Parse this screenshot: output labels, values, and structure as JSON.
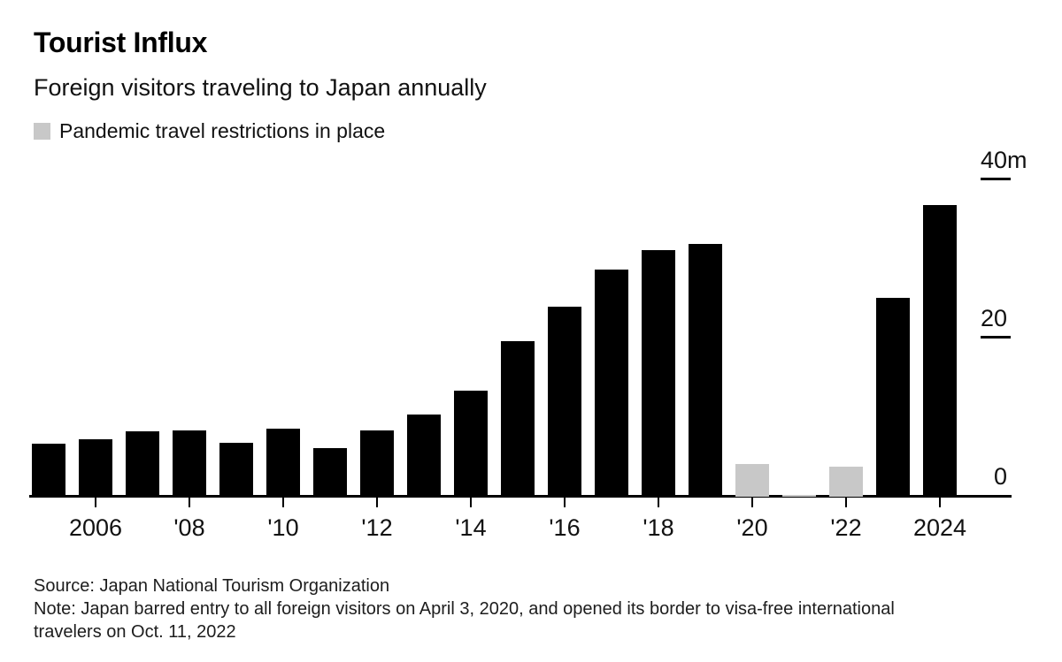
{
  "chart_data": {
    "type": "bar",
    "title": "Tourist Influx",
    "subtitle": "Foreign visitors traveling to Japan annually",
    "legend": [
      {
        "label": "Pandemic travel restrictions in place",
        "color": "#c8c8c8"
      }
    ],
    "unit": "millions of visitors per year",
    "categories": [
      2005,
      2006,
      2007,
      2008,
      2009,
      2010,
      2011,
      2012,
      2013,
      2014,
      2015,
      2016,
      2017,
      2018,
      2019,
      2020,
      2021,
      2022,
      2023,
      2024
    ],
    "values": [
      6.7,
      7.3,
      8.3,
      8.4,
      6.8,
      8.6,
      6.2,
      8.4,
      10.4,
      13.4,
      19.7,
      24.0,
      28.7,
      31.2,
      31.9,
      4.1,
      0.25,
      3.8,
      25.1,
      36.9
    ],
    "pandemic_years": [
      2020,
      2021,
      2022
    ],
    "bar_color": "#000000",
    "pandemic_bar_color": "#c8c8c8",
    "y_axis": {
      "side": "right",
      "lim": [
        0,
        40
      ],
      "ticks": [
        {
          "value": 0,
          "label": "0",
          "line": false
        },
        {
          "value": 20,
          "label": "20",
          "line": true
        },
        {
          "value": 40,
          "label": "40m",
          "line": true
        }
      ]
    },
    "x_axis": {
      "ticks": [
        {
          "year": 2006,
          "label": "2006"
        },
        {
          "year": 2008,
          "label": "'08"
        },
        {
          "year": 2010,
          "label": "'10"
        },
        {
          "year": 2012,
          "label": "'12"
        },
        {
          "year": 2014,
          "label": "'14"
        },
        {
          "year": 2016,
          "label": "'16"
        },
        {
          "year": 2018,
          "label": "'18"
        },
        {
          "year": 2020,
          "label": "'20"
        },
        {
          "year": 2022,
          "label": "'22"
        },
        {
          "year": 2024,
          "label": "2024"
        }
      ]
    },
    "footer": {
      "source": "Source: Japan National Tourism Organization",
      "note": "Note: Japan barred entry to all foreign visitors on April 3, 2020, and opened its border to visa-free international travelers on Oct. 11, 2022"
    }
  }
}
